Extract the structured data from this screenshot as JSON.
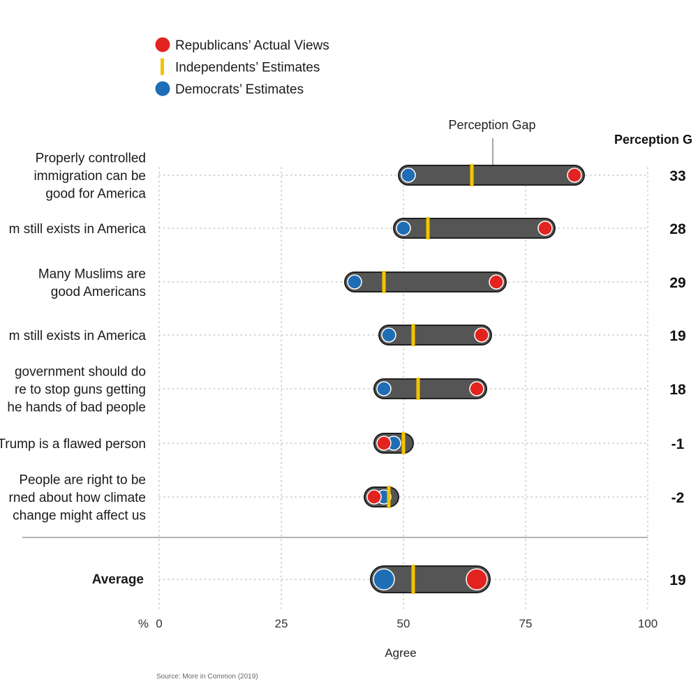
{
  "colors": {
    "republican": "#e3231f",
    "independent": "#f5c400",
    "democrat": "#1f6db5",
    "bar": "#555555",
    "bar_outline": "#1f1f1f"
  },
  "legend": {
    "items": [
      {
        "label": "Republicans’ Actual Views",
        "marker": "red-dot"
      },
      {
        "label": "Independents’ Estimates",
        "marker": "yellow-line"
      },
      {
        "label": "Democrats’ Estimates",
        "marker": "blue-dot"
      }
    ]
  },
  "annotations": {
    "callout": "Perception Gap",
    "gap_header": "Perception G",
    "x_unit": "%",
    "xlabel": "Agree",
    "source": "Source: More in Common (2019)"
  },
  "chart_data": {
    "type": "dot-range",
    "xlim": [
      0,
      100
    ],
    "xticks": [
      0,
      25,
      50,
      75,
      100
    ],
    "xlabel": "Agree",
    "grid": "dotted",
    "legend_position": "top-left",
    "rows": [
      {
        "label": [
          "Properly controlled",
          "immigration can be",
          "good for America"
        ],
        "republican": 85,
        "independent": 64,
        "democrat": 51,
        "gap": "33"
      },
      {
        "label": [
          "m still exists in America"
        ],
        "republican": 79,
        "independent": 55,
        "democrat": 50,
        "gap": "28"
      },
      {
        "label": [
          "Many Muslims are",
          "good Americans"
        ],
        "republican": 69,
        "independent": 46,
        "democrat": 40,
        "gap": "29"
      },
      {
        "label": [
          "m still exists in America"
        ],
        "republican": 66,
        "independent": 52,
        "democrat": 47,
        "gap": "19"
      },
      {
        "label": [
          "government should do",
          "re to stop guns getting",
          "he hands of bad people"
        ],
        "republican": 65,
        "independent": 53,
        "democrat": 46,
        "gap": "18"
      },
      {
        "label": [
          "Trump is a flawed person"
        ],
        "republican": 46,
        "independent": 50,
        "democrat": 48,
        "gap": "-1"
      },
      {
        "label": [
          "People are right to be",
          "rned about how climate",
          "change might affect us"
        ],
        "republican": 44,
        "independent": 47,
        "democrat": 46,
        "gap": "-2"
      }
    ],
    "average": {
      "label": "Average",
      "republican": 65,
      "independent": 52,
      "democrat": 46,
      "gap": "19"
    }
  }
}
